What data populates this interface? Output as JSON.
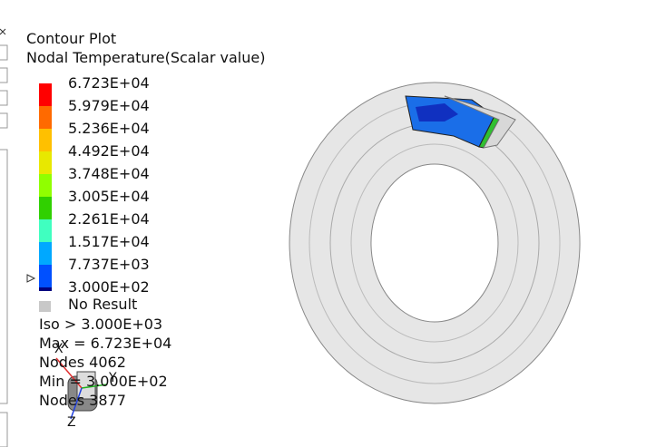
{
  "header": {
    "title": "Contour Plot",
    "subtitle": "Nodal Temperature(Scalar value)"
  },
  "legend": {
    "labels": [
      "6.723E+04",
      "5.979E+04",
      "5.236E+04",
      "4.492E+04",
      "3.748E+04",
      "3.005E+04",
      "2.261E+04",
      "1.517E+04",
      "7.737E+03",
      "3.000E+02"
    ],
    "colors": [
      "#ff0000",
      "#ff6a00",
      "#ffc000",
      "#e8e800",
      "#90ff00",
      "#30d000",
      "#40ffc0",
      "#00a8ff",
      "#0050ff"
    ],
    "no_result": "No Result",
    "no_result_color": "#c8c8c8"
  },
  "stats": [
    "Iso > 3.000E+03",
    "Max =  6.723E+04",
    "Nodes 4062",
    "Min = 3.000E+02",
    "Nodes 3877"
  ],
  "triad": {
    "x": "X",
    "y": "Y",
    "z": "Z"
  }
}
